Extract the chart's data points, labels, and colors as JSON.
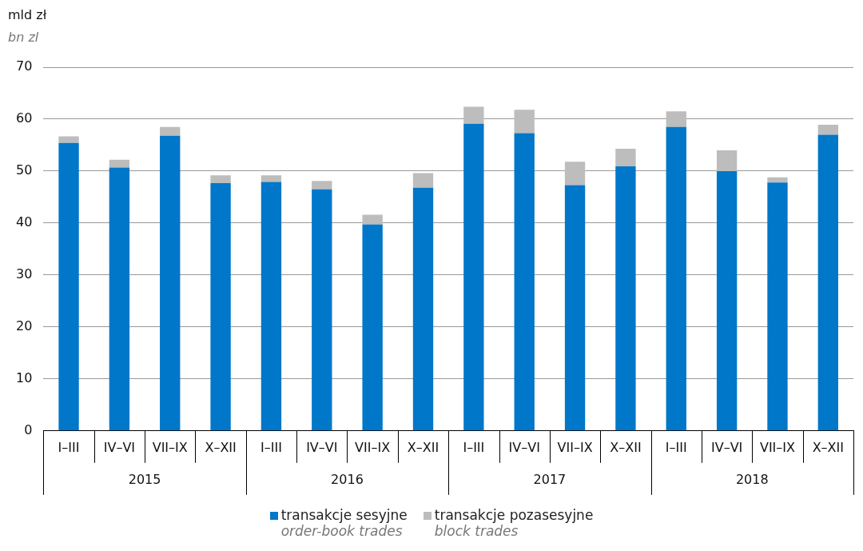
{
  "chart_data": {
    "type": "bar",
    "stacked": true,
    "ylabel": "mld zł",
    "subtitle": "bn zl",
    "categories": [
      "I–III",
      "IV–VI",
      "VII–IX",
      "X–XII",
      "I–III",
      "IV–VI",
      "VII–IX",
      "X–XII",
      "I–III",
      "IV–VI",
      "VII–IX",
      "X–XII",
      "I–III",
      "IV–VI",
      "VII–IX",
      "X–XII"
    ],
    "annotations": [
      "2015",
      "2016",
      "2017",
      "2018"
    ],
    "series": [
      {
        "name": "transakcje sesyjne\norder-book trades",
        "color": "#0077c8",
        "values": [
          55.4,
          50.7,
          56.8,
          47.7,
          47.9,
          46.5,
          39.7,
          46.8,
          59.1,
          57.3,
          47.3,
          50.9,
          58.5,
          50.0,
          47.8,
          57.0
        ]
      },
      {
        "name": "transakcje pozasesyjne\nblock trades",
        "color": "#bdbdbd",
        "values": [
          1.3,
          1.5,
          1.7,
          1.5,
          1.3,
          1.6,
          1.9,
          2.8,
          3.3,
          4.5,
          4.5,
          3.4,
          3.0,
          4.0,
          1.0,
          1.9
        ]
      }
    ],
    "ylim": [
      0,
      70
    ],
    "yticks": [
      0,
      10,
      20,
      30,
      40,
      50,
      60,
      70
    ],
    "grid": "y",
    "legend": "bottom"
  }
}
